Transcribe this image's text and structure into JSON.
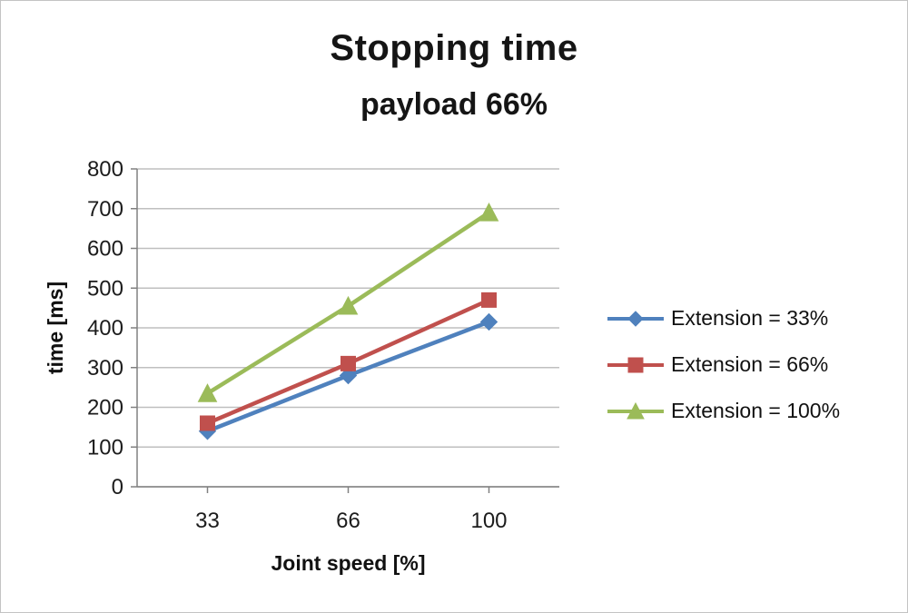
{
  "chart_data": {
    "type": "line",
    "title": "Stopping time",
    "subtitle": "payload 66%",
    "categories": [
      "33",
      "66",
      "100"
    ],
    "xlabel": "Joint speed [%]",
    "ylabel": "time [ms]",
    "ylim": [
      0,
      800
    ],
    "ytick_step": 100,
    "grid": true,
    "legend_position": "right",
    "series": [
      {
        "name": "Extension = 33%",
        "marker": "diamond",
        "color": "#4F81BD",
        "values": [
          140,
          280,
          415
        ]
      },
      {
        "name": "Extension = 66%",
        "marker": "square",
        "color": "#C0504D",
        "values": [
          160,
          310,
          470
        ]
      },
      {
        "name": "Extension = 100%",
        "marker": "triangle",
        "color": "#9BBB59",
        "values": [
          235,
          455,
          690
        ]
      }
    ],
    "colors": {
      "gridline": "#bfbfbf",
      "axis": "#808080",
      "text": "#111111"
    }
  }
}
